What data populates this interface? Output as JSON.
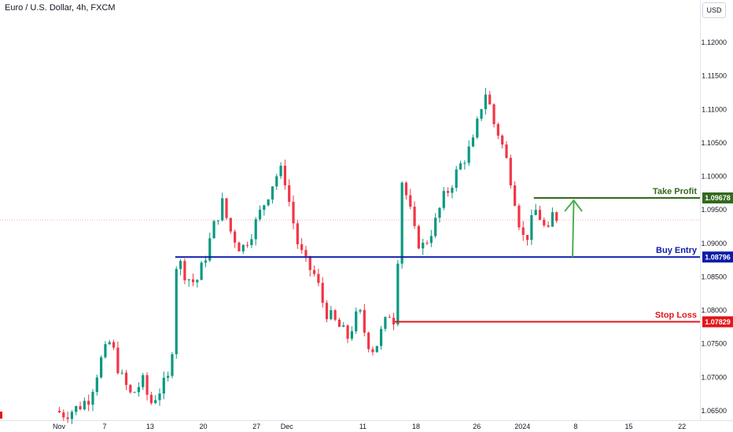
{
  "header": {
    "title": "Euro / U.S. Dollar, 4h, FXCM",
    "currency_button": "USD"
  },
  "chart_data": {
    "type": "candlestick",
    "symbol": "Euro / U.S. Dollar",
    "timeframe": "4h",
    "broker": "FXCM",
    "ylim": [
      1.0632,
      1.1245
    ],
    "y_ticks": [
      "1.12000",
      "1.11500",
      "1.11000",
      "1.10500",
      "1.10000",
      "1.09500",
      "1.09000",
      "1.08500",
      "1.08000",
      "1.07500",
      "1.07000",
      "1.06500"
    ],
    "x_ticks": [
      {
        "label": "Nov",
        "day": 0
      },
      {
        "label": "7",
        "day": 6
      },
      {
        "label": "13",
        "day": 12
      },
      {
        "label": "20",
        "day": 19
      },
      {
        "label": "27",
        "day": 26
      },
      {
        "label": "Dec",
        "day": 30
      },
      {
        "label": "11",
        "day": 40
      },
      {
        "label": "18",
        "day": 47
      },
      {
        "label": "26",
        "day": 55
      },
      {
        "label": "2024",
        "day": 61
      },
      {
        "label": "8",
        "day": 68
      },
      {
        "label": "15",
        "day": 75
      },
      {
        "label": "22",
        "day": 82
      }
    ],
    "last_price": 1.0935,
    "price_path": [
      [
        -0.5,
        1.065
      ],
      [
        0.8,
        1.0645
      ],
      [
        2.5,
        1.0655
      ],
      [
        4.0,
        1.067
      ],
      [
        5.5,
        1.0725
      ],
      [
        6.8,
        1.0755
      ],
      [
        8.0,
        1.0705
      ],
      [
        9.5,
        1.0672
      ],
      [
        11.0,
        1.0695
      ],
      [
        12.0,
        1.066
      ],
      [
        13.5,
        1.0685
      ],
      [
        14.6,
        1.07
      ],
      [
        15.0,
        1.076
      ],
      [
        15.5,
        1.088
      ],
      [
        16.8,
        1.085
      ],
      [
        18.0,
        1.084
      ],
      [
        19.0,
        1.087
      ],
      [
        20.5,
        1.093
      ],
      [
        21.5,
        1.096
      ],
      [
        22.5,
        1.092
      ],
      [
        24.0,
        1.089
      ],
      [
        25.5,
        1.092
      ],
      [
        27.0,
        1.096
      ],
      [
        28.5,
        1.1
      ],
      [
        29.5,
        1.101
      ],
      [
        30.5,
        1.095
      ],
      [
        31.5,
        1.0895
      ],
      [
        32.5,
        1.087
      ],
      [
        33.8,
        1.085
      ],
      [
        35.0,
        1.08
      ],
      [
        36.5,
        1.078
      ],
      [
        38.0,
        1.076
      ],
      [
        39.5,
        1.08
      ],
      [
        40.5,
        1.0755
      ],
      [
        41.5,
        1.074
      ],
      [
        42.5,
        1.077
      ],
      [
        43.5,
        1.0795
      ],
      [
        44.2,
        1.0785
      ],
      [
        44.6,
        1.088
      ],
      [
        45.0,
        1.1
      ],
      [
        46.0,
        1.096
      ],
      [
        47.0,
        1.0905
      ],
      [
        48.0,
        1.0895
      ],
      [
        49.5,
        1.093
      ],
      [
        50.5,
        1.0965
      ],
      [
        51.5,
        1.0985
      ],
      [
        52.5,
        1.101
      ],
      [
        53.5,
        1.103
      ],
      [
        54.5,
        1.105
      ],
      [
        55.5,
        1.11
      ],
      [
        56.0,
        1.113
      ],
      [
        56.5,
        1.1115
      ],
      [
        57.2,
        1.108
      ],
      [
        58.0,
        1.106
      ],
      [
        59.0,
        1.102
      ],
      [
        59.8,
        1.098
      ],
      [
        60.5,
        1.0935
      ],
      [
        61.3,
        1.09
      ],
      [
        62.0,
        1.0925
      ],
      [
        62.8,
        1.095
      ],
      [
        63.5,
        1.0935
      ],
      [
        64.3,
        1.091
      ],
      [
        65.0,
        1.0945
      ],
      [
        65.6,
        1.0938
      ]
    ],
    "levels": [
      {
        "name": "Take Profit",
        "value": 1.09678,
        "label": "1.09678",
        "color": "#33691e"
      },
      {
        "name": "Buy Entry",
        "value": 1.08796,
        "label": "1.08796",
        "color": "#0d1ca8"
      },
      {
        "name": "Stop Loss",
        "value": 1.07829,
        "label": "1.07829",
        "color": "#e3161b"
      }
    ],
    "target_arrow": {
      "color": "#4caf50",
      "from": 1.08796,
      "to": 1.09678
    }
  }
}
